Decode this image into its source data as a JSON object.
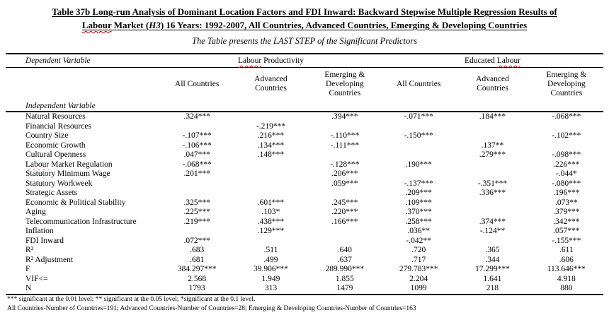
{
  "title": {
    "line1": "Table 37b Long-run Analysis of Dominant Location Factors and FDI Inward: Backward Stepwise Multiple Regression Results of",
    "line2_word1": "Labour",
    "line2_mid": " Market (",
    "line2_h3": "H3",
    "line2_rest": ") 16 Years: 1992-2007, All Countries, Advanced Countries, Emerging & Developing Countries",
    "subtitle": "The Table presents the LAST STEP of the Significant Predictors"
  },
  "header": {
    "dependent_variable": "Dependent Variable",
    "group1_word1": "Labour",
    "group1_word2": " Productivity",
    "group2_word1": "Educated ",
    "group2_word2": "Labour",
    "columns": [
      "All Countries",
      "Advanced Countries",
      "Emerging & Developing Countries",
      "All Countries",
      "Advanced Countries",
      "Emerging & Developing Countries"
    ],
    "independent_variable": "Independent Variable"
  },
  "rows": [
    {
      "label": "Natural Resources",
      "cells": [
        ".324***",
        "",
        ".394***",
        "-.071***",
        ".184***",
        "-.068***"
      ]
    },
    {
      "label": "Financial Resources",
      "cells": [
        "",
        "-.219***",
        "",
        "",
        "",
        ""
      ]
    },
    {
      "label": "Country Size",
      "cells": [
        "-.107***",
        ".216***",
        "-.110***",
        "-.150***",
        "",
        "-.102***"
      ]
    },
    {
      "label": "Economic Growth",
      "cells": [
        "-.106***",
        ".134***",
        "-.111***",
        "",
        ".137**",
        ""
      ]
    },
    {
      "label": "Cultural Openness",
      "cells": [
        ".047***",
        ".148***",
        "",
        "",
        ".279***",
        "-.098***"
      ]
    },
    {
      "label_parts": [
        {
          "t": "Labour",
          "misspelled": true
        },
        {
          "t": " Market Regulation"
        }
      ],
      "cells": [
        "-.068***",
        "",
        "-.128***",
        ".190***",
        "",
        ".226***"
      ]
    },
    {
      "label": "Statutory Minimum Wage",
      "cells": [
        ".201***",
        "",
        ".206***",
        "",
        "",
        "-.044*"
      ]
    },
    {
      "label": "Statutory Workweek",
      "cells": [
        "",
        "",
        ".059***",
        "-.137***",
        "-.351***",
        "-.080***"
      ]
    },
    {
      "label": "Strategic Assets",
      "cells": [
        "",
        "",
        "",
        ".209***",
        ".336***",
        ".196***"
      ]
    },
    {
      "label": "Economic & Political Stability",
      "cells": [
        ".325***",
        ".601***",
        ".245***",
        ".109***",
        "",
        ".073**"
      ]
    },
    {
      "label": "Aging",
      "cells": [
        ".225***",
        ".103*",
        ".220***",
        ".370***",
        "",
        ".379***"
      ]
    },
    {
      "label": "Telecommunication Infrastructure",
      "cells": [
        ".219***",
        ".438***",
        ".166***",
        ".258***",
        ".374***",
        ".342***"
      ]
    },
    {
      "label": "Inflation",
      "cells": [
        "",
        ".129***",
        "",
        ".036**",
        "-.124**",
        ".057***"
      ]
    },
    {
      "label": "FDI Inward",
      "cells": [
        ".072***",
        "",
        "",
        "-.042**",
        "",
        "-.155***"
      ]
    },
    {
      "label": "R²",
      "cells": [
        ".683",
        ".511",
        ".640",
        ".720",
        ".365",
        ".611"
      ]
    },
    {
      "label": "R² Adjustment",
      "cells": [
        ".681",
        ".499",
        ".637",
        ".717",
        ".344",
        ".606"
      ]
    },
    {
      "label": "F",
      "cells": [
        "384.297***",
        "39.906***",
        "289.990***",
        "279.783***",
        "17.299***",
        "113.646***"
      ]
    },
    {
      "label": "VIF<=",
      "cells": [
        "2.568",
        "1.949",
        "1.855",
        "2.204",
        "1.641",
        "4.918"
      ]
    },
    {
      "label": "N",
      "cells": [
        "1793",
        "313",
        "1479",
        "1099",
        "218",
        "880"
      ]
    }
  ],
  "footnotes": {
    "line1": "*** significant at the 0.01 level; ** significant at the 0.05 level; *significant at the 0.1 level.",
    "line2": "All Countries-Number of Countries=191; Advanced Countries-Number of Countries=28; Emerging & Developing Countries-Number of Countries=163"
  },
  "colors": {
    "text": "#000000",
    "background": "#ffffff",
    "spellcheck_underline": "#cc0000"
  }
}
